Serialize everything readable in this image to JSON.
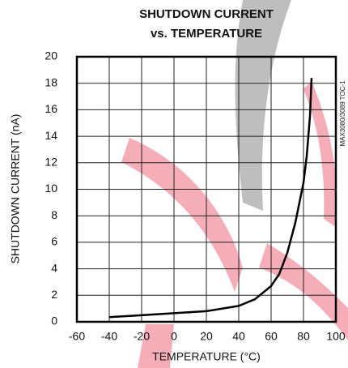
{
  "chart_data": {
    "type": "line",
    "title": [
      "SHUTDOWN CURRENT",
      "vs. TEMPERATURE"
    ],
    "x_label": "TEMPERATURE (°C)",
    "y_label": "SHUTDOWN CURRENT (nA)",
    "annotation": "MAX3080/3089 TOC-1",
    "x": [
      -40,
      -20,
      0,
      20,
      40,
      50,
      60,
      65,
      70,
      75,
      80,
      82,
      84,
      85
    ],
    "series": [
      {
        "color": "#000000",
        "values": [
          0.35,
          0.5,
          0.65,
          0.8,
          1.2,
          1.7,
          2.7,
          3.6,
          5.2,
          7.5,
          10.5,
          12.5,
          15.5,
          18.4
        ]
      }
    ],
    "xlim": [
      -60,
      100
    ],
    "xticks": [
      -60,
      -40,
      -20,
      0,
      20,
      40,
      60,
      80,
      100
    ],
    "ylim": [
      0,
      20
    ],
    "yticks": [
      0,
      2,
      4,
      6,
      8,
      10,
      12,
      14,
      16,
      18,
      20
    ],
    "grid": true
  }
}
